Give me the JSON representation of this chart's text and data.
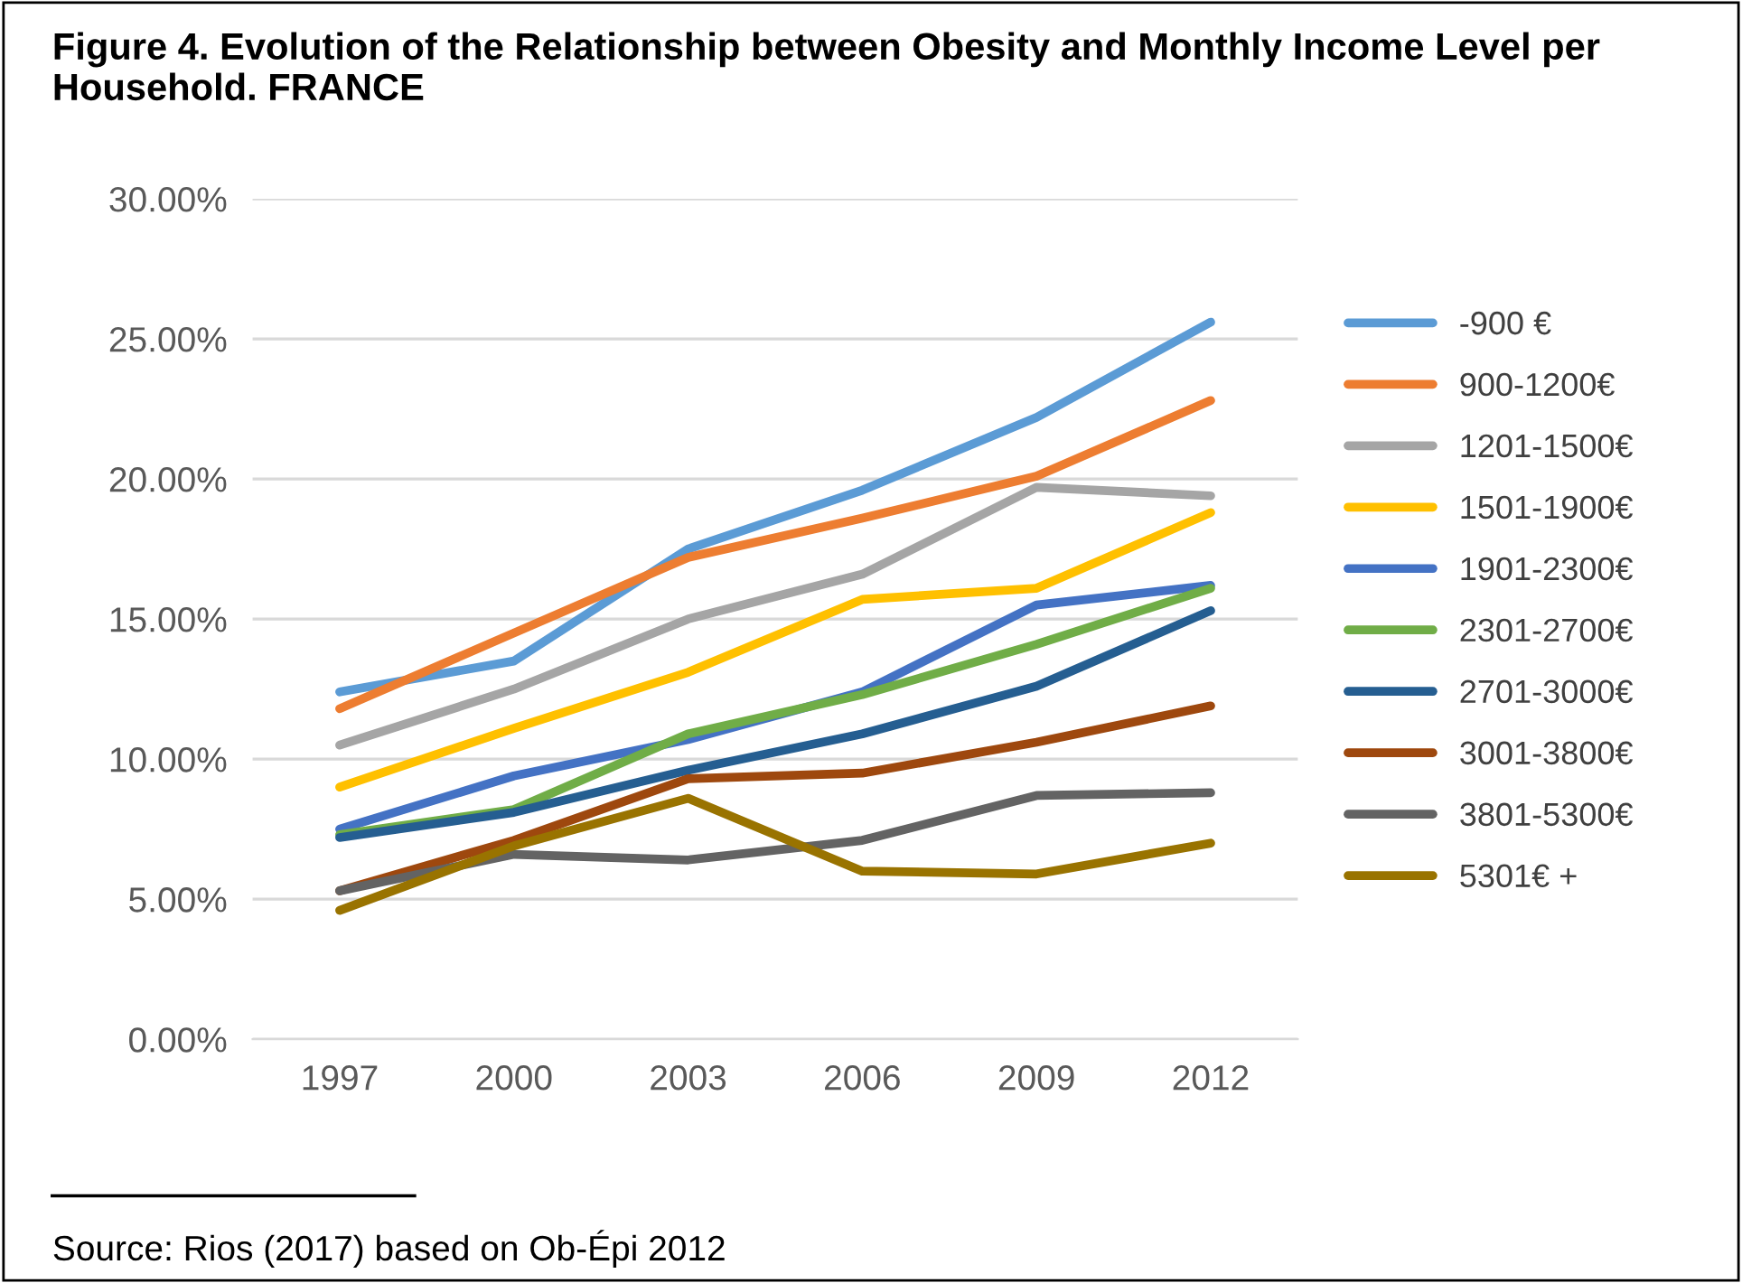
{
  "chart_data": {
    "type": "line",
    "title": "Figure 4. Evolution of the Relationship between Obesity and Monthly Income Level per Household. FRANCE",
    "categories": [
      "1997",
      "2000",
      "2003",
      "2006",
      "2009",
      "2012"
    ],
    "series": [
      {
        "name": "-900 €",
        "color": "#5b9bd5",
        "values": [
          12.4,
          13.5,
          17.5,
          19.6,
          22.2,
          25.6
        ]
      },
      {
        "name": "900-1200€",
        "color": "#ed7d31",
        "values": [
          11.8,
          14.5,
          17.2,
          18.6,
          20.1,
          22.8
        ]
      },
      {
        "name": "1201-1500€",
        "color": "#a5a5a5",
        "values": [
          10.5,
          12.5,
          15.0,
          16.6,
          19.7,
          19.4
        ]
      },
      {
        "name": "1501-1900€",
        "color": "#ffc000",
        "values": [
          9.0,
          11.1,
          13.1,
          15.7,
          16.1,
          18.8
        ]
      },
      {
        "name": "1901-2300€",
        "color": "#4472c4",
        "values": [
          7.5,
          9.4,
          10.7,
          12.4,
          15.5,
          16.2
        ]
      },
      {
        "name": "2301-2700€",
        "color": "#70ad47",
        "values": [
          7.3,
          8.2,
          10.9,
          12.3,
          14.1,
          16.1
        ]
      },
      {
        "name": "2701-3000€",
        "color": "#255e91",
        "values": [
          7.2,
          8.1,
          9.6,
          10.9,
          12.6,
          15.3
        ]
      },
      {
        "name": "3001-3800€",
        "color": "#9e480e",
        "values": [
          5.3,
          7.1,
          9.3,
          9.5,
          10.6,
          11.9
        ]
      },
      {
        "name": "3801-5300€",
        "color": "#636363",
        "values": [
          5.3,
          6.6,
          6.4,
          7.1,
          8.7,
          8.8
        ]
      },
      {
        "name": "5301€ +",
        "color": "#997300",
        "values": [
          4.6,
          6.9,
          8.6,
          6.0,
          5.9,
          7.0
        ]
      }
    ],
    "ylim": [
      0,
      30
    ],
    "yticks": [
      {
        "value": 0,
        "label": "0.00%"
      },
      {
        "value": 5,
        "label": "5.00%"
      },
      {
        "value": 10,
        "label": "10.00%"
      },
      {
        "value": 15,
        "label": "15.00%"
      },
      {
        "value": 20,
        "label": "20.00%"
      },
      {
        "value": 25,
        "label": "25.00%"
      },
      {
        "value": 30,
        "label": "30.00%"
      }
    ],
    "grid": "y",
    "legend": "right",
    "marker": "none",
    "line_style": "solid",
    "annotations": [
      "Source: Rios (2017) based on Ob-Épi 2012"
    ]
  }
}
